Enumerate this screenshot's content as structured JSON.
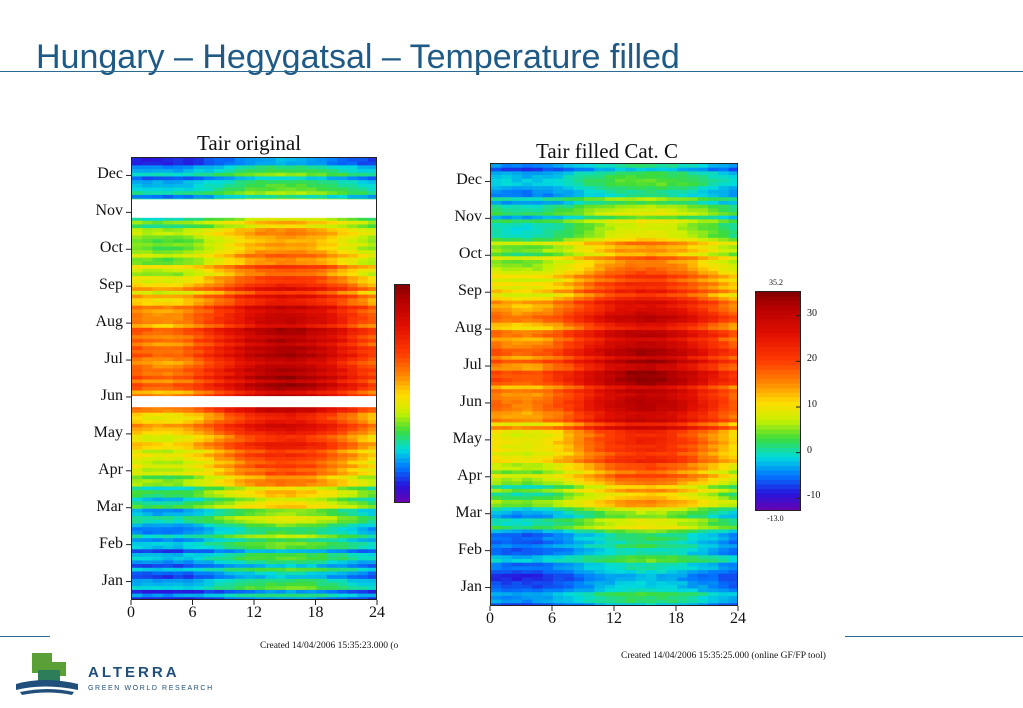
{
  "slide": {
    "title": "Hungary – Hegygatsal – Temperature filled"
  },
  "colors": {
    "title": "#1f5a86",
    "rule": "#2a6a94",
    "logo": "#1f4f7a",
    "logo_green": "#5aa036"
  },
  "logo": {
    "icon": "alterra-logo-icon",
    "name": "ALTERRA",
    "tagline": "GREEN WORLD RESEARCH"
  },
  "chart_data": [
    {
      "type": "heatmap",
      "title": "Tair original",
      "x_ticks": [
        "0",
        "6",
        "12",
        "18",
        "24"
      ],
      "xlim": [
        0,
        24
      ],
      "y_ticks": [
        "Jan",
        "Feb",
        "Mar",
        "Apr",
        "May",
        "Jun",
        "Jul",
        "Aug",
        "Sep",
        "Oct",
        "Nov",
        "Dec"
      ],
      "ylim": [
        1,
        13
      ],
      "value_range": [
        -13.0,
        35.2
      ],
      "gaps": [
        {
          "month_start": 11.38,
          "month_end": 11.88,
          "hour_start": 0,
          "hour_end": 24
        },
        {
          "month_start": 6.25,
          "month_end": 6.55,
          "hour_start": 0,
          "hour_end": 24
        }
      ],
      "credit": "Created 14/04/2006 15:35:23.000 (o"
    },
    {
      "type": "heatmap",
      "title": "Tair filled Cat. C",
      "x_ticks": [
        "0",
        "6",
        "12",
        "18",
        "24"
      ],
      "xlim": [
        0,
        24
      ],
      "y_ticks": [
        "Jan",
        "Feb",
        "Mar",
        "Apr",
        "May",
        "Jun",
        "Jul",
        "Aug",
        "Sep",
        "Oct",
        "Nov",
        "Dec"
      ],
      "ylim": [
        1,
        13
      ],
      "value_range": [
        -13.0,
        35.2
      ],
      "credit": "Created 14/04/2006 15:35:25.000 (online GF/FP tool)"
    }
  ],
  "colorbar": {
    "min_label": "-13.0",
    "max_label": "35.2",
    "min": -13.0,
    "max": 35.2,
    "ticks": [
      "30",
      "20",
      "10",
      "0",
      "-10"
    ],
    "tick_values": [
      30,
      20,
      10,
      0,
      -10
    ]
  }
}
